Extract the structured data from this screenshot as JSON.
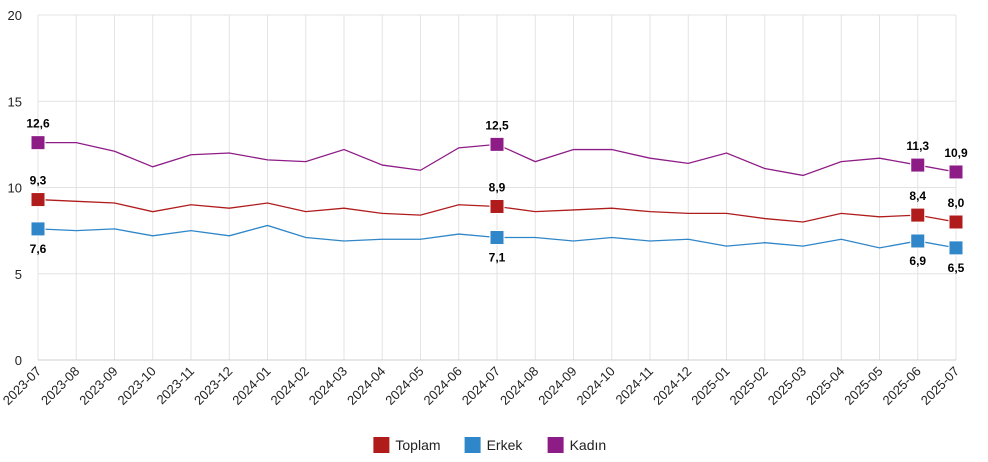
{
  "chart_data": {
    "type": "line",
    "title": "",
    "xlabel": "",
    "ylabel": "",
    "ylim": [
      0,
      20
    ],
    "yticks": [
      0,
      5,
      10,
      15,
      20
    ],
    "grid": true,
    "legend_position": "bottom",
    "categories": [
      "2023-07",
      "2023-08",
      "2023-09",
      "2023-10",
      "2023-11",
      "2023-12",
      "2024-01",
      "2024-02",
      "2024-03",
      "2024-04",
      "2024-05",
      "2024-06",
      "2024-07",
      "2024-08",
      "2024-09",
      "2024-10",
      "2024-11",
      "2024-12",
      "2025-01",
      "2025-02",
      "2025-03",
      "2025-04",
      "2025-05",
      "2025-06",
      "2025-07"
    ],
    "series": [
      {
        "name": "Toplam",
        "color": "#b01c1c",
        "values": [
          9.3,
          9.2,
          9.1,
          8.6,
          9.0,
          8.8,
          9.1,
          8.6,
          8.8,
          8.5,
          8.4,
          9.0,
          8.9,
          8.6,
          8.7,
          8.8,
          8.6,
          8.5,
          8.5,
          8.2,
          8.0,
          8.5,
          8.3,
          8.4,
          8.0
        ],
        "labels": {
          "0": "9,3",
          "12": "8,9",
          "23": "8,4",
          "24": "8,0"
        }
      },
      {
        "name": "Erkek",
        "color": "#2f86c8",
        "values": [
          7.6,
          7.5,
          7.6,
          7.2,
          7.5,
          7.2,
          7.8,
          7.1,
          6.9,
          7.0,
          7.0,
          7.3,
          7.1,
          7.1,
          6.9,
          7.1,
          6.9,
          7.0,
          6.6,
          6.8,
          6.6,
          7.0,
          6.5,
          6.9,
          6.5
        ],
        "labels": {
          "0": "7,6",
          "12": "7,1",
          "23": "6,9",
          "24": "6,5"
        }
      },
      {
        "name": "Kadın",
        "color": "#8e1c87",
        "values": [
          12.6,
          12.6,
          12.1,
          11.2,
          11.9,
          12.0,
          11.6,
          11.5,
          12.2,
          11.3,
          11.0,
          12.3,
          12.5,
          11.5,
          12.2,
          12.2,
          11.7,
          11.4,
          12.0,
          11.1,
          10.7,
          11.5,
          11.7,
          11.3,
          10.9
        ],
        "labels": {
          "0": "12,6",
          "12": "12,5",
          "23": "11,3",
          "24": "10,9"
        }
      }
    ]
  }
}
